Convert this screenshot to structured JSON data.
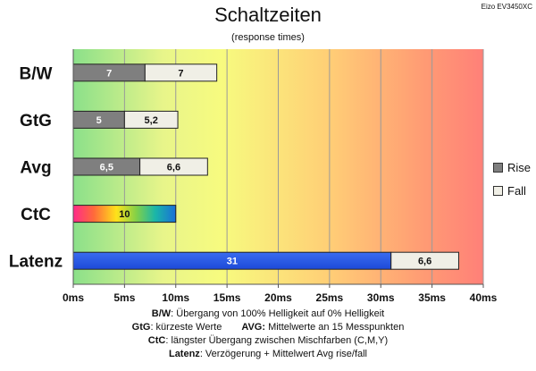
{
  "title": "Schaltzeiten",
  "subtitle": "(response times)",
  "corner_label": "Eizo EV3450XC",
  "legend": [
    {
      "name": "Rise",
      "color": "#7f7f7f"
    },
    {
      "name": "Fall",
      "color": "#f0efe6"
    }
  ],
  "notes": {
    "line1_key": "B/W",
    "line1_text": ":  Übergang von 100% Helligkeit auf 0% Helligkeit",
    "line2a_key": "GtG",
    "line2a_text": ": kürzeste  Werte",
    "line2b_key": "AVG:",
    "line2b_text": " Mittelwerte  an 15 Messpunkten",
    "line3_key": "CtC",
    "line3_text": ": längster Übergang  zwischen Mischfarben (C,M,Y)",
    "line4_key": "Latenz",
    "line4_text": ": Verzögerung  + Mittelwert Avg rise/fall"
  },
  "chart_data": {
    "type": "bar",
    "orientation": "horizontal",
    "stacked": true,
    "title": "Schaltzeiten",
    "subtitle": "(response times)",
    "categories": [
      "B/W",
      "GtG",
      "Avg",
      "CtC",
      "Latenz"
    ],
    "xlim": [
      0,
      40
    ],
    "xticks": [
      0,
      5,
      10,
      15,
      20,
      25,
      30,
      35,
      40
    ],
    "xtick_labels": [
      "0ms",
      "5ms",
      "10ms",
      "15ms",
      "20ms",
      "25ms",
      "30ms",
      "35ms",
      "40ms"
    ],
    "grid": true,
    "legend_position": "right",
    "series": [
      {
        "name": "Rise",
        "values": [
          7,
          5,
          6.5,
          10,
          31
        ],
        "labels": [
          "7",
          "5",
          "6,5",
          "10",
          "31"
        ]
      },
      {
        "name": "Fall",
        "values": [
          7,
          5.2,
          6.6,
          null,
          6.6
        ],
        "labels": [
          "7",
          "5,2",
          "6,6",
          "",
          "6,6"
        ]
      }
    ]
  }
}
